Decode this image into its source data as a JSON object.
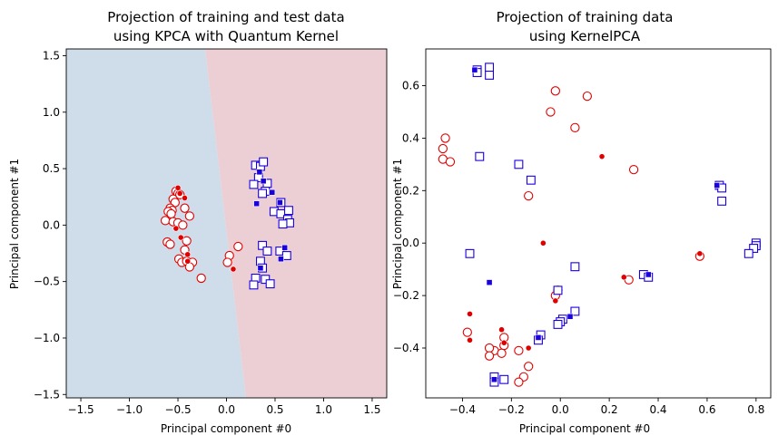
{
  "chart_data": [
    {
      "type": "scatter",
      "title": "Projection of training and test data\nusing KPCA with Quantum Kernel",
      "xlabel": "Principal component #0",
      "ylabel": "Principal component #1",
      "xlim": [
        -1.65,
        1.65
      ],
      "ylim": [
        -1.53,
        1.56
      ],
      "xticks": [
        -1.5,
        -1.0,
        -0.5,
        0.0,
        0.5,
        1.0,
        1.5
      ],
      "yticks": [
        -1.5,
        -1.0,
        -0.5,
        0.0,
        0.5,
        1.0,
        1.5
      ],
      "xtick_labels": [
        "−1.5",
        "−1.0",
        "−0.5",
        "0.0",
        "0.5",
        "1.0",
        "1.5"
      ],
      "ytick_labels": [
        "−1.5",
        "−1.0",
        "−0.5",
        "0.0",
        "0.5",
        "1.0",
        "1.5"
      ],
      "background_regions": {
        "boundary": [
          [
            -0.22,
            1.56
          ],
          [
            0.2,
            -1.53
          ]
        ],
        "left_color": "#cfdce9",
        "right_color": "#ebcfd4"
      },
      "grid": false,
      "series": [
        {
          "role": "train",
          "class": "A",
          "marker": "circle-open",
          "color": "#e00000",
          "points": [
            [
              -0.52,
              0.3
            ],
            [
              -0.5,
              0.28
            ],
            [
              -0.48,
              0.27
            ],
            [
              -0.55,
              0.23
            ],
            [
              -0.53,
              0.2
            ],
            [
              -0.58,
              0.15
            ],
            [
              -0.56,
              0.13
            ],
            [
              -0.6,
              0.12
            ],
            [
              -0.57,
              0.1
            ],
            [
              -0.43,
              0.15
            ],
            [
              -0.38,
              0.08
            ],
            [
              -0.63,
              0.04
            ],
            [
              -0.55,
              0.03
            ],
            [
              -0.5,
              0.02
            ],
            [
              -0.45,
              0.0
            ],
            [
              -0.61,
              -0.15
            ],
            [
              -0.58,
              -0.17
            ],
            [
              -0.41,
              -0.14
            ],
            [
              -0.43,
              -0.22
            ],
            [
              -0.49,
              -0.3
            ],
            [
              -0.46,
              -0.33
            ],
            [
              -0.41,
              -0.32
            ],
            [
              -0.35,
              -0.33
            ],
            [
              -0.38,
              -0.37
            ],
            [
              -0.26,
              -0.47
            ],
            [
              0.03,
              -0.27
            ],
            [
              0.12,
              -0.19
            ],
            [
              0.01,
              -0.33
            ]
          ]
        },
        {
          "role": "test",
          "class": "A",
          "marker": "circle-filled",
          "color": "#e00000",
          "points": [
            [
              -0.5,
              0.33
            ],
            [
              -0.48,
              0.28
            ],
            [
              -0.43,
              0.24
            ],
            [
              -0.52,
              -0.03
            ],
            [
              -0.47,
              -0.11
            ],
            [
              -0.4,
              -0.26
            ],
            [
              -0.4,
              -0.32
            ],
            [
              0.07,
              -0.39
            ]
          ]
        },
        {
          "role": "train",
          "class": "B",
          "marker": "square-open",
          "color": "#1a00dd",
          "points": [
            [
              0.3,
              0.53
            ],
            [
              0.35,
              0.52
            ],
            [
              0.38,
              0.56
            ],
            [
              0.33,
              0.42
            ],
            [
              0.42,
              0.37
            ],
            [
              0.28,
              0.36
            ],
            [
              0.4,
              0.3
            ],
            [
              0.37,
              0.28
            ],
            [
              0.56,
              0.2
            ],
            [
              0.49,
              0.12
            ],
            [
              0.56,
              0.1
            ],
            [
              0.64,
              0.13
            ],
            [
              0.63,
              0.05
            ],
            [
              0.65,
              0.02
            ],
            [
              0.58,
              0.01
            ],
            [
              0.37,
              -0.18
            ],
            [
              0.42,
              -0.23
            ],
            [
              0.55,
              -0.23
            ],
            [
              0.62,
              -0.27
            ],
            [
              0.35,
              -0.32
            ],
            [
              0.37,
              -0.38
            ],
            [
              0.3,
              -0.47
            ],
            [
              0.4,
              -0.48
            ],
            [
              0.28,
              -0.53
            ],
            [
              0.45,
              -0.52
            ]
          ]
        },
        {
          "role": "test",
          "class": "B",
          "marker": "square-filled",
          "color": "#1a00dd",
          "points": [
            [
              0.34,
              0.47
            ],
            [
              0.38,
              0.39
            ],
            [
              0.47,
              0.29
            ],
            [
              0.31,
              0.19
            ],
            [
              0.55,
              0.2
            ],
            [
              0.6,
              -0.2
            ],
            [
              0.56,
              -0.3
            ],
            [
              0.35,
              -0.38
            ]
          ]
        }
      ]
    },
    {
      "type": "scatter",
      "title": "Projection of training data\nusing KernelPCA",
      "xlabel": "Principal component #0",
      "ylabel": "Principal component #1",
      "xlim": [
        -0.55,
        0.86
      ],
      "ylim": [
        -0.59,
        0.74
      ],
      "xticks": [
        -0.4,
        -0.2,
        0.0,
        0.2,
        0.4,
        0.6,
        0.8
      ],
      "yticks": [
        -0.4,
        -0.2,
        0.0,
        0.2,
        0.4,
        0.6
      ],
      "xtick_labels": [
        "−0.4",
        "−0.2",
        "0.0",
        "0.2",
        "0.4",
        "0.6",
        "0.8"
      ],
      "ytick_labels": [
        "−0.4",
        "−0.2",
        "0.0",
        "0.2",
        "0.4",
        "0.6"
      ],
      "grid": false,
      "series": [
        {
          "role": "train",
          "class": "A",
          "marker": "circle-open",
          "color": "#e00000",
          "points": [
            [
              -0.02,
              0.58
            ],
            [
              0.11,
              0.56
            ],
            [
              -0.04,
              0.5
            ],
            [
              0.06,
              0.44
            ],
            [
              -0.47,
              0.4
            ],
            [
              -0.48,
              0.36
            ],
            [
              -0.48,
              0.32
            ],
            [
              -0.45,
              0.31
            ],
            [
              0.3,
              0.28
            ],
            [
              -0.13,
              0.18
            ],
            [
              0.57,
              -0.05
            ],
            [
              0.28,
              -0.14
            ],
            [
              -0.01,
              -0.18
            ],
            [
              -0.02,
              -0.2
            ],
            [
              -0.38,
              -0.34
            ],
            [
              -0.23,
              -0.36
            ],
            [
              -0.23,
              -0.39
            ],
            [
              -0.27,
              -0.41
            ],
            [
              -0.24,
              -0.42
            ],
            [
              -0.29,
              -0.4
            ],
            [
              -0.29,
              -0.43
            ],
            [
              -0.17,
              -0.41
            ],
            [
              -0.13,
              -0.47
            ],
            [
              -0.15,
              -0.51
            ],
            [
              -0.17,
              -0.53
            ]
          ]
        },
        {
          "role": "test",
          "class": "A",
          "marker": "circle-filled",
          "color": "#e00000",
          "points": [
            [
              0.17,
              0.33
            ],
            [
              -0.07,
              0.0
            ],
            [
              0.57,
              -0.04
            ],
            [
              0.26,
              -0.13
            ],
            [
              -0.02,
              -0.22
            ],
            [
              -0.37,
              -0.27
            ],
            [
              -0.24,
              -0.33
            ],
            [
              -0.37,
              -0.37
            ],
            [
              -0.23,
              -0.38
            ],
            [
              -0.13,
              -0.4
            ]
          ]
        },
        {
          "role": "train",
          "class": "B",
          "marker": "square-open",
          "color": "#1a00dd",
          "points": [
            [
              -0.29,
              0.67
            ],
            [
              -0.34,
              0.66
            ],
            [
              -0.34,
              0.65
            ],
            [
              -0.29,
              0.64
            ],
            [
              -0.33,
              0.33
            ],
            [
              -0.17,
              0.3
            ],
            [
              -0.12,
              0.24
            ],
            [
              0.65,
              0.22
            ],
            [
              0.66,
              0.21
            ],
            [
              0.66,
              0.16
            ],
            [
              -0.37,
              -0.04
            ],
            [
              0.8,
              0.0
            ],
            [
              0.8,
              -0.01
            ],
            [
              0.79,
              -0.02
            ],
            [
              0.77,
              -0.04
            ],
            [
              0.06,
              -0.09
            ],
            [
              0.34,
              -0.12
            ],
            [
              0.36,
              -0.13
            ],
            [
              -0.01,
              -0.18
            ],
            [
              0.06,
              -0.26
            ],
            [
              0.01,
              -0.29
            ],
            [
              0.0,
              -0.3
            ],
            [
              -0.01,
              -0.31
            ],
            [
              -0.08,
              -0.35
            ],
            [
              -0.09,
              -0.37
            ],
            [
              -0.27,
              -0.51
            ],
            [
              -0.23,
              -0.52
            ],
            [
              -0.27,
              -0.53
            ]
          ]
        },
        {
          "role": "test",
          "class": "B",
          "marker": "square-filled",
          "color": "#1a00dd",
          "points": [
            [
              -0.35,
              0.66
            ],
            [
              0.64,
              0.22
            ],
            [
              0.36,
              -0.12
            ],
            [
              -0.29,
              -0.15
            ],
            [
              0.04,
              -0.28
            ],
            [
              -0.09,
              -0.36
            ],
            [
              -0.27,
              -0.52
            ]
          ]
        }
      ]
    }
  ]
}
